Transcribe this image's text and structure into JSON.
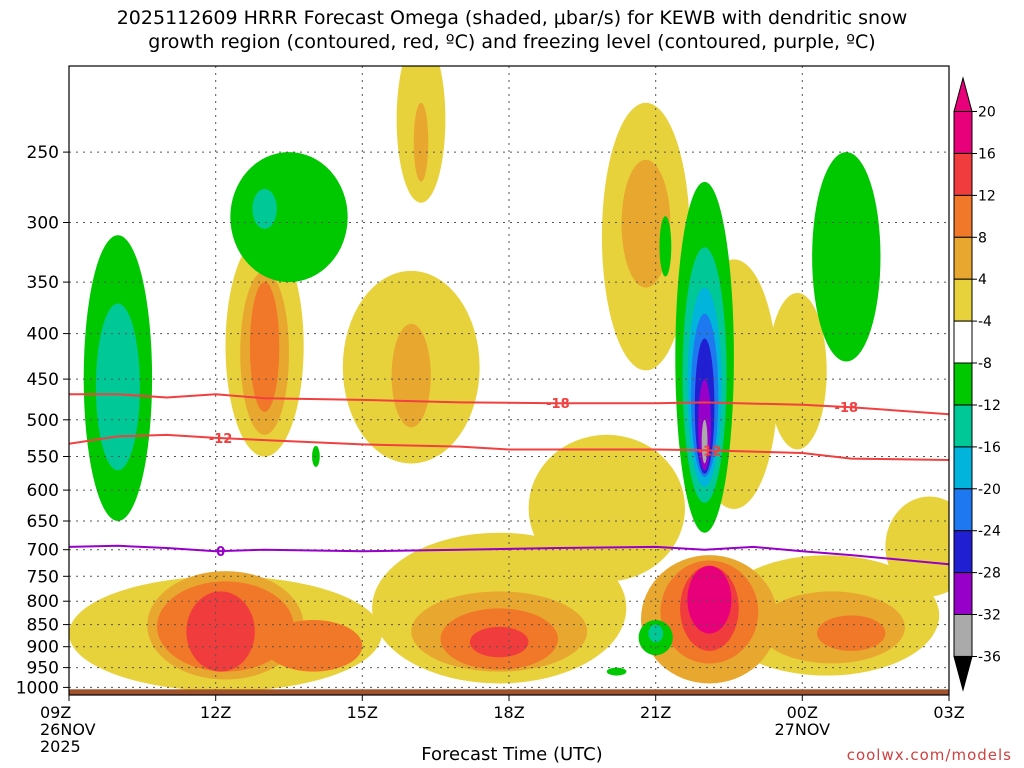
{
  "chart_data": {
    "type": "heatmap",
    "title_line1": "2025112609 HRRR Forecast Omega (shaded, μbar/s) for KEWB with dendritic snow",
    "title_line2": "growth region (contoured, red, ºC) and freezing level (contoured, purple, ºC)",
    "xlabel": "Forecast Time (UTC)",
    "credit": "coolwx.com/models",
    "x_range_hours": [
      9,
      27
    ],
    "y_range_hpa": [
      1020,
      200
    ],
    "x_ticks": [
      {
        "hour": 9,
        "label": "09Z",
        "sub1": "26NOV",
        "sub2": "2025"
      },
      {
        "hour": 12,
        "label": "12Z",
        "sub1": "",
        "sub2": ""
      },
      {
        "hour": 15,
        "label": "15Z",
        "sub1": "",
        "sub2": ""
      },
      {
        "hour": 18,
        "label": "18Z",
        "sub1": "",
        "sub2": ""
      },
      {
        "hour": 21,
        "label": "21Z",
        "sub1": "",
        "sub2": ""
      },
      {
        "hour": 24,
        "label": "00Z",
        "sub1": "27NOV",
        "sub2": ""
      },
      {
        "hour": 27,
        "label": "03Z",
        "sub1": "",
        "sub2": ""
      }
    ],
    "y_ticks": [
      250,
      300,
      350,
      400,
      450,
      500,
      550,
      600,
      650,
      700,
      750,
      800,
      850,
      900,
      950,
      1000
    ],
    "colorbar": {
      "labels": [
        "20",
        "16",
        "12",
        "8",
        "4",
        "-4",
        "-8",
        "-12",
        "-16",
        "-20",
        "-24",
        "-28",
        "-32",
        "-36"
      ],
      "bins": [
        {
          "color": "#e8007a"
        },
        {
          "color": "#f03c3c"
        },
        {
          "color": "#f07828"
        },
        {
          "color": "#e8a830"
        },
        {
          "color": "#e8d23c"
        },
        {
          "color": "#ffffff"
        },
        {
          "color": "#00c800"
        },
        {
          "color": "#00c896"
        },
        {
          "color": "#00b4dc"
        },
        {
          "color": "#1e78f0"
        },
        {
          "color": "#2020d2"
        },
        {
          "color": "#9600c8"
        },
        {
          "color": "#aaaaaa"
        }
      ]
    },
    "omega_regions": [
      {
        "level": 4,
        "color": "#e8d23c",
        "cx": 12.2,
        "cy": 880,
        "rx": 3.2,
        "ry": 130
      },
      {
        "level": 4,
        "color": "#e8d23c",
        "cx": 13.0,
        "cy": 430,
        "rx": 0.8,
        "ry": 120
      },
      {
        "level": 4,
        "color": "#e8d23c",
        "cx": 16.0,
        "cy": 450,
        "rx": 1.4,
        "ry": 110
      },
      {
        "level": 4,
        "color": "#e8d23c",
        "cx": 17.8,
        "cy": 830,
        "rx": 2.6,
        "ry": 160
      },
      {
        "level": 4,
        "color": "#e8d23c",
        "cx": 16.2,
        "cy": 235,
        "rx": 0.5,
        "ry": 50
      },
      {
        "level": 4,
        "color": "#e8d23c",
        "cx": 20.8,
        "cy": 330,
        "rx": 0.9,
        "ry": 110
      },
      {
        "level": 4,
        "color": "#e8d23c",
        "cx": 20.0,
        "cy": 640,
        "rx": 1.6,
        "ry": 120
      },
      {
        "level": 4,
        "color": "#e8d23c",
        "cx": 22.6,
        "cy": 480,
        "rx": 0.9,
        "ry": 150
      },
      {
        "level": 4,
        "color": "#e8d23c",
        "cx": 23.9,
        "cy": 450,
        "rx": 0.6,
        "ry": 90
      },
      {
        "level": 4,
        "color": "#e8d23c",
        "cx": 24.5,
        "cy": 840,
        "rx": 2.3,
        "ry": 130
      },
      {
        "level": 4,
        "color": "#e8d23c",
        "cx": 26.6,
        "cy": 700,
        "rx": 0.9,
        "ry": 90
      },
      {
        "level": 8,
        "color": "#e8a830",
        "cx": 12.2,
        "cy": 860,
        "rx": 1.6,
        "ry": 120
      },
      {
        "level": 8,
        "color": "#e8a830",
        "cx": 13.0,
        "cy": 430,
        "rx": 0.5,
        "ry": 90
      },
      {
        "level": 8,
        "color": "#e8a830",
        "cx": 16.0,
        "cy": 450,
        "rx": 0.4,
        "ry": 60
      },
      {
        "level": 8,
        "color": "#e8a830",
        "cx": 16.2,
        "cy": 245,
        "rx": 0.15,
        "ry": 25
      },
      {
        "level": 8,
        "color": "#e8a830",
        "cx": 17.8,
        "cy": 870,
        "rx": 1.8,
        "ry": 90
      },
      {
        "level": 8,
        "color": "#e8a830",
        "cx": 20.8,
        "cy": 305,
        "rx": 0.5,
        "ry": 50
      },
      {
        "level": 8,
        "color": "#e8a830",
        "cx": 22.1,
        "cy": 850,
        "rx": 1.4,
        "ry": 140
      },
      {
        "level": 8,
        "color": "#e8a830",
        "cx": 24.6,
        "cy": 860,
        "rx": 1.5,
        "ry": 80
      },
      {
        "level": 12,
        "color": "#f07828",
        "cx": 12.2,
        "cy": 860,
        "rx": 1.4,
        "ry": 100
      },
      {
        "level": 12,
        "color": "#f07828",
        "cx": 13.0,
        "cy": 420,
        "rx": 0.3,
        "ry": 70
      },
      {
        "level": 12,
        "color": "#f07828",
        "cx": 14.0,
        "cy": 900,
        "rx": 1.0,
        "ry": 60
      },
      {
        "level": 12,
        "color": "#f07828",
        "cx": 17.8,
        "cy": 885,
        "rx": 1.2,
        "ry": 70
      },
      {
        "level": 12,
        "color": "#f07828",
        "cx": 22.1,
        "cy": 830,
        "rx": 1.0,
        "ry": 110
      },
      {
        "level": 12,
        "color": "#f07828",
        "cx": 25.0,
        "cy": 870,
        "rx": 0.7,
        "ry": 40
      },
      {
        "level": 16,
        "color": "#f03c3c",
        "cx": 12.1,
        "cy": 870,
        "rx": 0.7,
        "ry": 90
      },
      {
        "level": 16,
        "color": "#f03c3c",
        "cx": 17.8,
        "cy": 890,
        "rx": 0.6,
        "ry": 35
      },
      {
        "level": 16,
        "color": "#f03c3c",
        "cx": 22.1,
        "cy": 820,
        "rx": 0.6,
        "ry": 90
      },
      {
        "level": 20,
        "color": "#e8007a",
        "cx": 22.1,
        "cy": 800,
        "rx": 0.45,
        "ry": 70
      },
      {
        "level": -4,
        "color": "#00c800",
        "cx": 10.0,
        "cy": 480,
        "rx": 0.7,
        "ry": 170
      },
      {
        "level": -4,
        "color": "#00c800",
        "cx": 13.5,
        "cy": 300,
        "rx": 1.2,
        "ry": 50
      },
      {
        "level": -4,
        "color": "#00c800",
        "cx": 14.05,
        "cy": 550,
        "rx": 0.08,
        "ry": 15
      },
      {
        "level": -4,
        "color": "#00c800",
        "cx": 21.2,
        "cy": 320,
        "rx": 0.12,
        "ry": 25
      },
      {
        "level": -4,
        "color": "#00c800",
        "cx": 22.0,
        "cy": 470,
        "rx": 0.6,
        "ry": 200
      },
      {
        "level": -4,
        "color": "#00c800",
        "cx": 24.9,
        "cy": 340,
        "rx": 0.7,
        "ry": 90
      },
      {
        "level": -4,
        "color": "#00c800",
        "cx": 21.0,
        "cy": 880,
        "rx": 0.35,
        "ry": 40
      },
      {
        "level": -4,
        "color": "#00c800",
        "cx": 20.2,
        "cy": 960,
        "rx": 0.2,
        "ry": 10
      },
      {
        "level": -8,
        "color": "#00c896",
        "cx": 10.0,
        "cy": 470,
        "rx": 0.45,
        "ry": 100
      },
      {
        "level": -8,
        "color": "#00c896",
        "cx": 13.0,
        "cy": 290,
        "rx": 0.25,
        "ry": 15
      },
      {
        "level": -8,
        "color": "#00c896",
        "cx": 22.0,
        "cy": 470,
        "rx": 0.45,
        "ry": 150
      },
      {
        "level": -8,
        "color": "#00c896",
        "cx": 21.0,
        "cy": 870,
        "rx": 0.15,
        "ry": 20
      },
      {
        "level": -12,
        "color": "#00b4dc",
        "cx": 22.0,
        "cy": 475,
        "rx": 0.35,
        "ry": 120
      },
      {
        "level": -16,
        "color": "#1e78f0",
        "cx": 22.0,
        "cy": 480,
        "rx": 0.28,
        "ry": 100
      },
      {
        "level": -20,
        "color": "#2020d2",
        "cx": 22.0,
        "cy": 490,
        "rx": 0.2,
        "ry": 85
      },
      {
        "level": -24,
        "color": "#9600c8",
        "cx": 22.0,
        "cy": 510,
        "rx": 0.13,
        "ry": 60
      },
      {
        "level": -28,
        "color": "#aaaaaa",
        "cx": 22.0,
        "cy": 530,
        "rx": 0.06,
        "ry": 30
      }
    ],
    "contours": [
      {
        "name": "dgz-minus18",
        "color": "#f04040",
        "label": "-18",
        "label_hours": [
          19.0,
          24.9
        ],
        "points": [
          [
            9,
            468
          ],
          [
            10,
            468
          ],
          [
            11,
            472
          ],
          [
            12,
            468
          ],
          [
            13,
            473
          ],
          [
            15,
            475
          ],
          [
            17,
            478
          ],
          [
            19,
            479
          ],
          [
            21,
            479
          ],
          [
            22,
            478
          ],
          [
            24,
            481
          ],
          [
            25,
            484
          ],
          [
            27,
            493
          ]
        ]
      },
      {
        "name": "dgz-minus12",
        "color": "#f04040",
        "label": "-12",
        "label_hours": [
          12.1,
          22.1
        ],
        "points": [
          [
            9,
            532
          ],
          [
            10,
            522
          ],
          [
            11,
            520
          ],
          [
            12,
            524
          ],
          [
            13,
            527
          ],
          [
            15,
            533
          ],
          [
            17,
            536
          ],
          [
            18,
            540
          ],
          [
            19,
            540
          ],
          [
            21,
            540
          ],
          [
            22,
            541
          ],
          [
            24,
            545
          ],
          [
            25,
            553
          ],
          [
            27,
            555
          ]
        ]
      },
      {
        "name": "freezing-level",
        "color": "#9600c8",
        "label": "0",
        "label_hours": [
          12.1
        ],
        "points": [
          [
            9,
            695
          ],
          [
            10,
            693
          ],
          [
            11,
            697
          ],
          [
            12,
            703
          ],
          [
            13,
            700
          ],
          [
            15,
            703
          ],
          [
            17,
            700
          ],
          [
            19,
            697
          ],
          [
            21,
            695
          ],
          [
            22,
            700
          ],
          [
            23,
            695
          ],
          [
            24,
            703
          ],
          [
            25,
            710
          ],
          [
            27,
            727
          ]
        ]
      }
    ],
    "ground_level_hpa": 1005
  }
}
